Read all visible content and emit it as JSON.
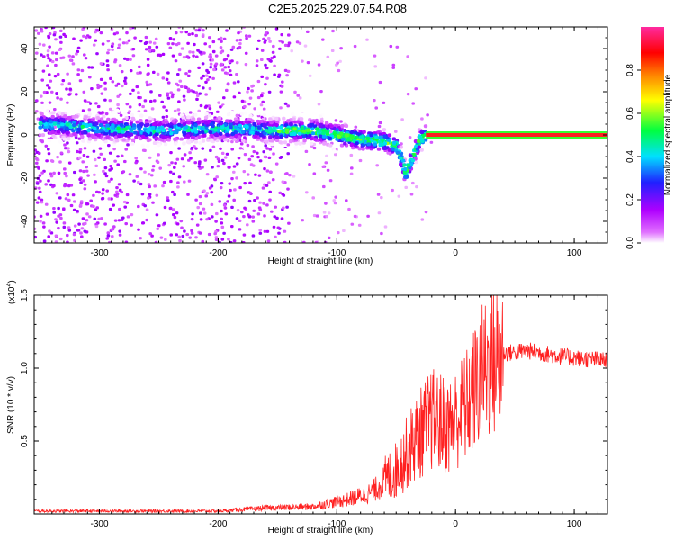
{
  "title": "C2E5.2025.229.07.54.R08",
  "chart_data": [
    {
      "type": "heatmap",
      "xlabel": "Height of straight line (km)",
      "ylabel": "Frequency (Hz)",
      "xlim": [
        -355,
        128
      ],
      "ylim": [
        -50,
        50
      ],
      "xticks": [
        -300,
        -200,
        -100,
        0,
        100
      ],
      "yticks": [
        -40,
        -20,
        0,
        20,
        40
      ],
      "colorbar": {
        "label": "Normalized spectral amplitude",
        "range": [
          0,
          1
        ],
        "ticks": [
          "0.0",
          "0.2",
          "0.4",
          "0.6",
          "0.8"
        ],
        "tick_values": [
          0.0,
          0.2,
          0.4,
          0.6,
          0.8
        ],
        "colors": [
          "#ffffff",
          "#e070ff",
          "#b000ff",
          "#2020ff",
          "#00e0ff",
          "#00ff40",
          "#ffff00",
          "#ff8000",
          "#ff0000",
          "#ff2aa0"
        ]
      },
      "ridge": [
        {
          "x": -350,
          "y": 5
        },
        {
          "x": -300,
          "y": 3
        },
        {
          "x": -250,
          "y": 2
        },
        {
          "x": -200,
          "y": 3
        },
        {
          "x": -150,
          "y": 2
        },
        {
          "x": -120,
          "y": 2
        },
        {
          "x": -100,
          "y": 0
        },
        {
          "x": -80,
          "y": -2
        },
        {
          "x": -60,
          "y": -3
        },
        {
          "x": -50,
          "y": -5
        },
        {
          "x": -45,
          "y": -12
        },
        {
          "x": -42,
          "y": -18
        },
        {
          "x": -30,
          "y": -2
        },
        {
          "x": -20,
          "y": 1
        },
        {
          "x": 0,
          "y": 1
        },
        {
          "x": 50,
          "y": 0
        },
        {
          "x": 128,
          "y": 0
        }
      ],
      "tone_line": {
        "y": 0,
        "x_from": -25,
        "x_to": 128,
        "color": "#ff2020"
      }
    },
    {
      "type": "line",
      "xlabel": "Height of straight line (km)",
      "ylabel": "SNR (10 * v/v)",
      "yscale_label": "(x10",
      "yscale_exp": "4",
      "yscale_close": ")",
      "xlim": [
        -355,
        128
      ],
      "ylim": [
        0,
        1.5
      ],
      "xticks": [
        -300,
        -200,
        -100,
        0,
        100
      ],
      "yticks": [
        "0.5",
        "1.0",
        "1.5"
      ],
      "ytick_values": [
        0.5,
        1.0,
        1.5
      ],
      "color": "#ff2020",
      "envelope": [
        {
          "x": -355,
          "y": 0.02
        },
        {
          "x": -200,
          "y": 0.02
        },
        {
          "x": -160,
          "y": 0.04
        },
        {
          "x": -120,
          "y": 0.05
        },
        {
          "x": -90,
          "y": 0.1
        },
        {
          "x": -70,
          "y": 0.15
        },
        {
          "x": -50,
          "y": 0.3
        },
        {
          "x": -35,
          "y": 0.5
        },
        {
          "x": -20,
          "y": 0.65
        },
        {
          "x": -5,
          "y": 0.6
        },
        {
          "x": 10,
          "y": 0.75
        },
        {
          "x": 25,
          "y": 1.0
        },
        {
          "x": 40,
          "y": 1.1
        },
        {
          "x": 60,
          "y": 1.12
        },
        {
          "x": 90,
          "y": 1.08
        },
        {
          "x": 128,
          "y": 1.05
        }
      ]
    }
  ]
}
